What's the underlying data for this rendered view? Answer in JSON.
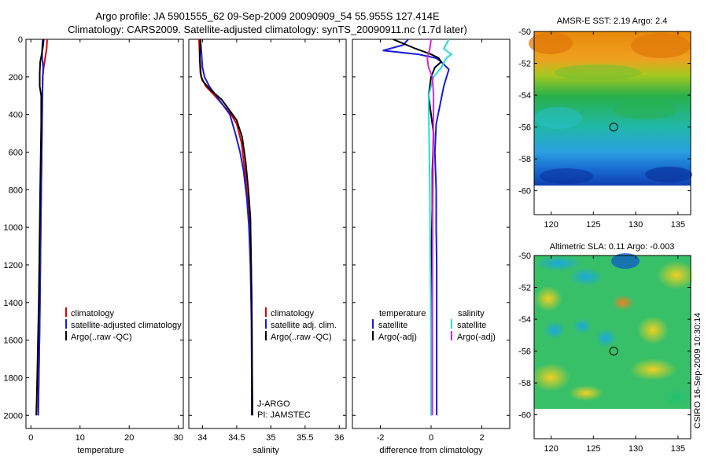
{
  "header": {
    "title_line1": "Argo profile: JA 5901555_62 09-Sep-2009 20090909_54 55.955S 127.414E",
    "title_line2": "Climatology: CARS2009. Satellite-adjusted climatology: synTS_20090911.nc (1.7d later)"
  },
  "colors": {
    "climatology": "#e00000",
    "satellite": "#1a1ad6",
    "argo": "#000000",
    "temp_satellite": "#1a1ad6",
    "sal_satellite": "#22dddd",
    "sal_argo_adj": "#dd22dd"
  },
  "chart_data": [
    {
      "id": "temperature",
      "type": "line",
      "xlabel": "temperature",
      "ylabel": "",
      "xlim": [
        -1,
        31
      ],
      "ylim": [
        2070,
        0
      ],
      "xticks": [
        0,
        10,
        20,
        30
      ],
      "xtick_labels": [
        "0",
        "10",
        "20",
        "30"
      ],
      "yticks": [
        0,
        200,
        400,
        600,
        800,
        1000,
        1200,
        1400,
        1600,
        1800,
        2000
      ],
      "ytick_labels": [
        "0",
        "200",
        "400",
        "600",
        "800",
        "1000",
        "1200",
        "1400",
        "1600",
        "1800",
        "2000"
      ],
      "series": [
        {
          "name": "climatology",
          "color_key": "climatology",
          "x": [
            3.3,
            3.2,
            2.9,
            2.6,
            2.4,
            2.35,
            2.3,
            2.2,
            2.0,
            1.8,
            1.5
          ],
          "y": [
            0,
            50,
            100,
            150,
            200,
            300,
            400,
            600,
            1000,
            1500,
            2000
          ]
        },
        {
          "name": "satellite-adjusted climatology",
          "color_key": "satellite",
          "x": [
            2.4,
            2.3,
            2.3,
            2.5,
            2.4,
            2.35,
            2.3,
            2.2,
            2.0,
            1.8,
            1.5
          ],
          "y": [
            0,
            50,
            100,
            150,
            200,
            300,
            400,
            600,
            1000,
            1500,
            2000
          ]
        },
        {
          "name": "Argo(..raw -QC)",
          "color_key": "argo",
          "x": [
            2.6,
            2.5,
            2.2,
            1.9,
            1.8,
            1.8,
            2.1,
            2.1,
            1.9,
            1.6,
            1.2,
            1.1
          ],
          "y": [
            0,
            30,
            80,
            120,
            180,
            250,
            300,
            450,
            800,
            1400,
            1900,
            2000
          ]
        }
      ],
      "legend": {
        "placement": "right",
        "entries": [
          "climatology",
          "satellite-adjusted climatology",
          "Argo(..raw -QC)"
        ]
      }
    },
    {
      "id": "salinity",
      "type": "line",
      "xlabel": "salinity",
      "ylabel": "",
      "xlim": [
        33.8,
        36.1
      ],
      "ylim": [
        2070,
        0
      ],
      "xticks": [
        34,
        34.5,
        35,
        35.5,
        36
      ],
      "xtick_labels": [
        "34",
        "34.5",
        "35",
        "35.5",
        "36"
      ],
      "series": [
        {
          "name": "climatology",
          "color_key": "climatology",
          "x": [
            33.95,
            33.96,
            33.98,
            34.05,
            34.18,
            34.3,
            34.42,
            34.5,
            34.57,
            34.62,
            34.66,
            34.69,
            34.71,
            34.72,
            34.725,
            34.73
          ],
          "y": [
            0,
            100,
            200,
            250,
            300,
            350,
            400,
            450,
            550,
            700,
            850,
            1000,
            1200,
            1400,
            1700,
            2000
          ]
        },
        {
          "name": "satellite adj. clim.",
          "color_key": "satellite",
          "x": [
            33.97,
            33.98,
            34.0,
            34.03,
            34.1,
            34.2,
            34.3,
            34.4,
            34.48,
            34.55,
            34.6,
            34.65,
            34.68,
            34.7,
            34.715,
            34.72,
            34.72
          ],
          "y": [
            0,
            50,
            150,
            200,
            250,
            300,
            350,
            400,
            500,
            600,
            700,
            850,
            1000,
            1200,
            1500,
            1800,
            2000
          ]
        },
        {
          "name": "Argo(..raw -QC)",
          "color_key": "argo",
          "x": [
            33.97,
            33.96,
            33.97,
            34.0,
            34.12,
            34.28,
            34.4,
            34.5,
            34.58,
            34.63,
            34.67,
            34.7,
            34.71,
            34.72,
            34.725,
            34.73
          ],
          "y": [
            0,
            100,
            180,
            220,
            270,
            320,
            380,
            430,
            520,
            650,
            800,
            950,
            1150,
            1400,
            1700,
            2000
          ]
        }
      ],
      "legend": {
        "placement": "right",
        "entries": [
          "climatology",
          "satellite adj. clim.",
          "Argo(..raw -QC)"
        ]
      },
      "annotations": [
        "J-ARGO",
        "PI: JAMSTEC"
      ]
    },
    {
      "id": "difference",
      "type": "line",
      "xlabel": "difference from climatology",
      "ylabel": "",
      "xlim": [
        -3.1,
        3.1
      ],
      "ylim": [
        2070,
        0
      ],
      "xticks": [
        -2,
        0,
        2
      ],
      "xtick_labels": [
        "-2",
        "0",
        "2"
      ],
      "series": [
        {
          "name": "temperature satellite",
          "color_key": "temp_satellite",
          "x": [
            -0.9,
            -1.1,
            -1.9,
            -0.5,
            0.2,
            0.4,
            0.7,
            0.5,
            0.35,
            0.2,
            0.15,
            0.2,
            0.2,
            0.22,
            0.22,
            0.22,
            0.22
          ],
          "y": [
            0,
            30,
            60,
            80,
            100,
            120,
            160,
            250,
            350,
            450,
            600,
            800,
            1000,
            1200,
            1500,
            1800,
            2000
          ]
        },
        {
          "name": "temperature Argo(-adj)",
          "color_key": "argo",
          "x": [
            -1.5,
            -0.6,
            0.0,
            0.3,
            0.4,
            0.15,
            0.0,
            -0.1,
            0.0,
            0.1,
            0.05,
            0.05,
            0.0,
            0.0,
            0.0
          ],
          "y": [
            0,
            50,
            80,
            100,
            120,
            150,
            200,
            300,
            400,
            500,
            700,
            900,
            1200,
            1600,
            2000
          ]
        },
        {
          "name": "salinity satellite",
          "color_key": "sal_satellite",
          "x": [
            0.7,
            0.5,
            0.8,
            0.6,
            0.4,
            0.1,
            -0.1,
            -0.08,
            -0.05,
            -0.03,
            0.0,
            0.0
          ],
          "y": [
            0,
            50,
            80,
            100,
            150,
            200,
            300,
            500,
            800,
            1200,
            1600,
            2000
          ]
        },
        {
          "name": "salinity Argo(-adj)",
          "color_key": "sal_argo_adj",
          "x": [
            0.0,
            -0.05,
            -0.15,
            -0.1,
            0.05,
            0.1,
            0.08,
            0.06,
            0.05,
            0.05
          ],
          "y": [
            0,
            50,
            100,
            150,
            200,
            300,
            600,
            1000,
            1500,
            2000
          ]
        }
      ],
      "legend": {
        "placement": "right",
        "temperature_header": "temperature",
        "salinity_header": "salinity",
        "temperature_entries": [
          "satellite",
          "Argo(-adj)"
        ],
        "salinity_entries": [
          "satellite",
          "Argo(-adj)"
        ]
      }
    },
    {
      "id": "sst_map",
      "type": "heatmap",
      "title": "AMSR-E SST: 2.19 Argo: 2.4",
      "xlim": [
        118,
        136.5
      ],
      "ylim": [
        -61.5,
        -50
      ],
      "xticks": [
        120,
        125,
        130,
        135
      ],
      "xtick_labels": [
        "120",
        "125",
        "130",
        "135"
      ],
      "yticks": [
        -50,
        -52,
        -54,
        -56,
        -58,
        -60
      ],
      "ytick_labels": [
        "-50",
        "-52",
        "-54",
        "-56",
        "-58",
        "-60"
      ],
      "data_extent": {
        "lon": [
          118,
          136.5
        ],
        "lat": [
          -60,
          -50
        ]
      },
      "marker": {
        "lon": 127.4,
        "lat": -56.0
      }
    },
    {
      "id": "sla_map",
      "type": "heatmap",
      "title": "Altimetric SLA: 0.11 Argo: -0.003",
      "xlim": [
        118,
        136.5
      ],
      "ylim": [
        -61.5,
        -50
      ],
      "xticks": [
        120,
        125,
        130,
        135
      ],
      "xtick_labels": [
        "120",
        "125",
        "130",
        "135"
      ],
      "yticks": [
        -50,
        -52,
        -54,
        -56,
        -58,
        -60
      ],
      "ytick_labels": [
        "-50",
        "-52",
        "-54",
        "-56",
        "-58",
        "-60"
      ],
      "data_extent": {
        "lon": [
          118,
          136.5
        ],
        "lat": [
          -60,
          -50
        ]
      },
      "marker": {
        "lon": 127.4,
        "lat": -56.0
      }
    }
  ],
  "side_label": "CSIRO 16-Sep-2009 10:30:14"
}
